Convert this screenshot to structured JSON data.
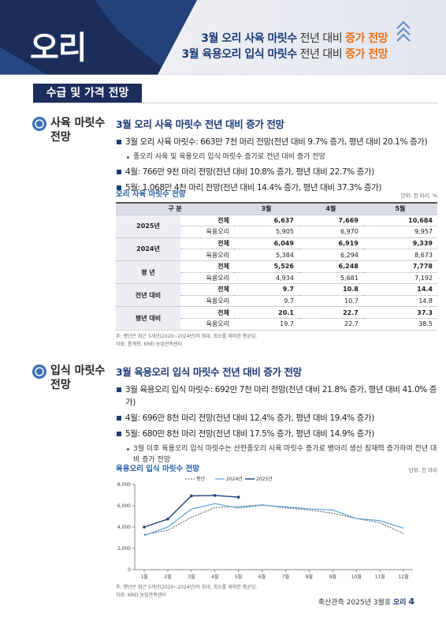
{
  "header": {
    "title": "오리",
    "headlines": [
      [
        "3월 오리 사육 마릿수",
        "전년 대비",
        "증가 전망"
      ],
      [
        "3월 육용오리 입식 마릿수",
        "전년 대비",
        "증가 전망"
      ]
    ]
  },
  "section_tab": "수급 및 가격 전망",
  "sections": [
    {
      "label": "사육 마릿수 전망",
      "heading": "3월 오리 사육 마릿수 전년 대비 증가 전망",
      "bullets": [
        {
          "text": "3월 오리 사육 마릿수: 663만 7천 마리 전망(전년 대비 9.7% 증가, 평년 대비 20.1% 증가)",
          "sub": [
            "종오리 사육 및 육용오리 입식 마릿수 증가로 전년 대비 증가 전망"
          ]
        },
        {
          "text": "4월: 766만 9천 마리 전망(전년 대비 10.8% 증가, 평년 대비 22.7% 증가)"
        },
        {
          "text": "5월: 1,068만 4천 마리 전망(전년 대비 14.4% 증가, 평년 대비 37.3% 증가)"
        }
      ]
    },
    {
      "label": "입식 마릿수 전망",
      "heading": "3월 육용오리 입식 마릿수 전년 대비 증가 전망",
      "bullets": [
        {
          "text": "3월 육용오리 입식 마릿수: 692만 7천 마리 전망(전년 대비 21.8% 증가, 평년 대비 41.0% 증가)"
        },
        {
          "text": "4월: 696만 8천 마리 전망(전년 대비 12.4% 증가, 평년 대비 19.4% 증가)"
        },
        {
          "text": "5월: 680만 8천 마리 전망(전년 대비 17.5% 증가, 평년 대비 14.9% 증가)",
          "sub": [
            "3월 이후 육용오리 입식 마릿수는 산란종오리 사육 마릿수 증가로 병아리 생산 잠재력 증가하여 전년 대비 증가 전망"
          ]
        }
      ]
    }
  ],
  "table": {
    "title": "오리 사육 마릿수 전망",
    "unit": "단위: 천 마리, %",
    "header": [
      "구 분",
      "3월",
      "4월",
      "5월"
    ],
    "groups": [
      {
        "label": "2025년",
        "rows": [
          [
            "전체",
            "6,637",
            "7,669",
            "10,684"
          ],
          [
            "육용오리",
            "5,905",
            "6,970",
            "9,957"
          ]
        ]
      },
      {
        "label": "2024년",
        "rows": [
          [
            "전체",
            "6,049",
            "6,919",
            "9,339"
          ],
          [
            "육용오리",
            "5,384",
            "6,294",
            "8,673"
          ]
        ]
      },
      {
        "label": "평 년",
        "rows": [
          [
            "전체",
            "5,526",
            "6,248",
            "7,778"
          ],
          [
            "육용오리",
            "4,934",
            "5,681",
            "7,192"
          ]
        ]
      },
      {
        "label": "전년 대비",
        "rows": [
          [
            "전체",
            "9.7",
            "10.8",
            "14.4"
          ],
          [
            "육용오리",
            "9.7",
            "10.7",
            "14.8"
          ]
        ]
      },
      {
        "label": "평년 대비",
        "rows": [
          [
            "전체",
            "20.1",
            "22.7",
            "37.3"
          ],
          [
            "육용오리",
            "19.7",
            "22.7",
            "38.5"
          ]
        ]
      }
    ],
    "notes": [
      "주: 평년은 최근 5개년(2020~2024년)의 최대, 최소를 제외한 평균임.",
      "자료: 통계청, KREI 농업관측센터"
    ]
  },
  "chart_data": {
    "type": "line",
    "title": "육용오리 입식 마릿수 전망",
    "unit": "단위: 천 마리",
    "categories": [
      "1월",
      "2월",
      "3월",
      "4월",
      "5월",
      "6월",
      "7월",
      "8월",
      "9월",
      "10월",
      "11월",
      "12월"
    ],
    "series": [
      {
        "name": "평년",
        "color": "#555555",
        "values": [
          3300,
          3700,
          4913,
          5836,
          5925,
          6100,
          5800,
          5600,
          5300,
          4800,
          4400,
          3400
        ]
      },
      {
        "name": "2024년",
        "color": "#5ba3d6",
        "values": [
          3200,
          4000,
          5687,
          6199,
          5794,
          6050,
          5900,
          5700,
          5600,
          4800,
          4600,
          3900
        ]
      },
      {
        "name": "2025년",
        "color": "#1f3f7a",
        "values": [
          4000,
          4750,
          6927,
          6968,
          6808,
          null,
          null,
          null,
          null,
          null,
          null,
          null
        ]
      }
    ],
    "ylim": [
      0,
      8000
    ],
    "yticks": [
      0,
      {
        "value": 2000,
        "label": "2,000"
      },
      {
        "value": 4000,
        "label": "4,000"
      },
      {
        "value": 6000,
        "label": "6,000"
      },
      {
        "value": 8000,
        "label": "8,000"
      }
    ],
    "grid": false,
    "notes": [
      "주: 평년은 최근 5개년(2020~2024년)의 최대, 최소를 제외한 평균임.",
      "자료: KREI 농업관측센터"
    ]
  },
  "footer": {
    "publication": "축산관측 2025년 3월호",
    "section": "오리",
    "page": "4"
  }
}
